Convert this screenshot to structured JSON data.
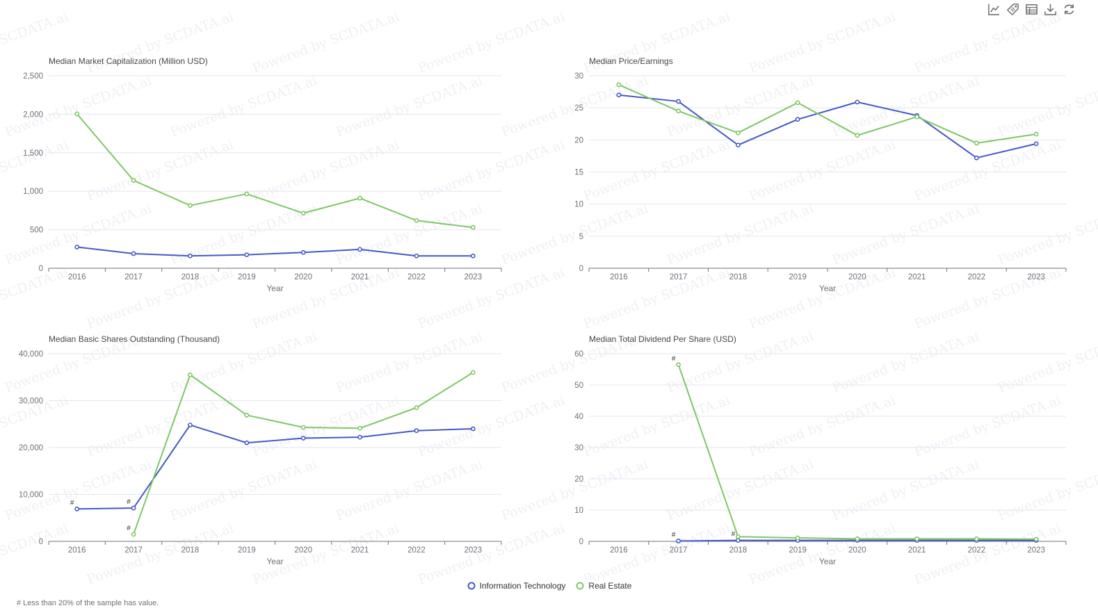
{
  "toolbox": {
    "icons": [
      "line-chart-icon",
      "tag-icon",
      "data-table-icon",
      "download-icon",
      "refresh-icon"
    ]
  },
  "legend": {
    "items": [
      {
        "label": "Information Technology",
        "color": "#4459c4"
      },
      {
        "label": "Real Estate",
        "color": "#7ec765"
      }
    ]
  },
  "footnote": "# Less than 20% of the sample has value.",
  "watermark": "Powered by SCDATA.ai",
  "chart_data": [
    {
      "type": "line",
      "title": "Median Market Capitalization (Million USD)",
      "xlabel": "Year",
      "ylabel": "",
      "categories": [
        "2016",
        "2017",
        "2018",
        "2019",
        "2020",
        "2021",
        "2022",
        "2023"
      ],
      "ylim": [
        0,
        2500
      ],
      "yticks": [
        0,
        500,
        1000,
        1500,
        2000,
        2500
      ],
      "yticklabels": [
        "0",
        "500",
        "1,000",
        "1,500",
        "2,000",
        "2,500"
      ],
      "series": [
        {
          "name": "Information Technology",
          "values": [
            275,
            190,
            160,
            175,
            205,
            245,
            160,
            160
          ],
          "marks": []
        },
        {
          "name": "Real Estate",
          "values": [
            2005,
            1140,
            815,
            965,
            715,
            910,
            620,
            530
          ],
          "marks": []
        }
      ]
    },
    {
      "type": "line",
      "title": "Median Price/Earnings",
      "xlabel": "Year",
      "ylabel": "",
      "categories": [
        "2016",
        "2017",
        "2018",
        "2019",
        "2020",
        "2021",
        "2022",
        "2023"
      ],
      "ylim": [
        0,
        30
      ],
      "yticks": [
        0,
        5,
        10,
        15,
        20,
        25,
        30
      ],
      "yticklabels": [
        "0",
        "5",
        "10",
        "15",
        "20",
        "25",
        "30"
      ],
      "series": [
        {
          "name": "Information Technology",
          "values": [
            27.0,
            26.0,
            19.2,
            23.2,
            25.9,
            23.8,
            17.2,
            19.4
          ],
          "marks": []
        },
        {
          "name": "Real Estate",
          "values": [
            28.6,
            24.5,
            21.1,
            25.8,
            20.7,
            23.6,
            19.5,
            20.9
          ],
          "marks": []
        }
      ]
    },
    {
      "type": "line",
      "title": "Median Basic Shares Outstanding (Thousand)",
      "xlabel": "Year",
      "ylabel": "",
      "categories": [
        "2016",
        "2017",
        "2018",
        "2019",
        "2020",
        "2021",
        "2022",
        "2023"
      ],
      "ylim": [
        0,
        40000
      ],
      "yticks": [
        0,
        10000,
        20000,
        30000,
        40000
      ],
      "yticklabels": [
        "0",
        "10,000",
        "20,000",
        "30,000",
        "40,000"
      ],
      "series": [
        {
          "name": "Information Technology",
          "values": [
            6900,
            7100,
            24800,
            21000,
            22000,
            22200,
            23600,
            24000
          ],
          "marks": [
            0,
            1
          ]
        },
        {
          "name": "Real Estate",
          "values": [
            null,
            1500,
            35500,
            26900,
            24300,
            24100,
            28500,
            36000
          ],
          "marks": [
            1
          ]
        }
      ]
    },
    {
      "type": "line",
      "title": "Median Total Dividend Per Share (USD)",
      "xlabel": "Year",
      "ylabel": "",
      "categories": [
        "2016",
        "2017",
        "2018",
        "2019",
        "2020",
        "2021",
        "2022",
        "2023"
      ],
      "ylim": [
        0,
        60
      ],
      "yticks": [
        0,
        10,
        20,
        30,
        40,
        50,
        60
      ],
      "yticklabels": [
        "0",
        "10",
        "20",
        "30",
        "40",
        "50",
        "60"
      ],
      "series": [
        {
          "name": "Information Technology",
          "values": [
            null,
            0.1,
            0.3,
            0.3,
            0.3,
            0.3,
            0.3,
            0.3
          ],
          "marks": [
            1,
            2
          ]
        },
        {
          "name": "Real Estate",
          "values": [
            null,
            56.5,
            1.5,
            1.1,
            0.8,
            0.8,
            0.8,
            0.7
          ],
          "marks": [
            1
          ]
        }
      ]
    }
  ]
}
